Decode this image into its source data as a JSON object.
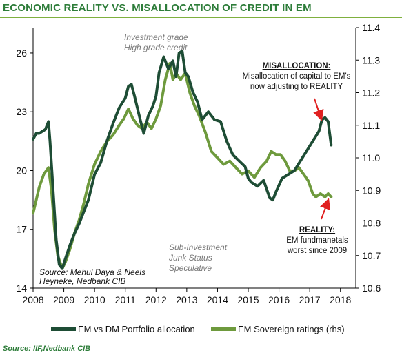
{
  "header": {
    "title": "ECONOMIC REALITY VS. MISALLOCATION OF CREDIT IN EM"
  },
  "footer": {
    "source": "Source: IIF,Nedbank CIB"
  },
  "chart_data": {
    "type": "line",
    "x_ticks": [
      "2008",
      "2009",
      "2010",
      "2011",
      "2012",
      "2013",
      "2014",
      "2015",
      "2016",
      "2017",
      "2018"
    ],
    "xlim": [
      2008,
      2018.5
    ],
    "y_left": {
      "ticks": [
        "14",
        "17",
        "20",
        "23",
        "26"
      ],
      "lim": [
        14,
        27.3
      ]
    },
    "y_right": {
      "ticks": [
        "10.6",
        "10.7",
        "10.8",
        "10.9",
        "11.0",
        "11.1",
        "11.2",
        "11.3",
        "11.4"
      ],
      "lim": [
        10.6,
        11.4
      ]
    },
    "legend_position": "bottom",
    "series": [
      {
        "name": "EM vs DM Portfolio allocation",
        "axis": "left",
        "color": "#1e4d35",
        "x": [
          2008.0,
          2008.1,
          2008.2,
          2008.3,
          2008.4,
          2008.5,
          2008.55,
          2008.65,
          2008.75,
          2008.85,
          2008.95,
          2009.05,
          2009.2,
          2009.35,
          2009.5,
          2009.65,
          2009.8,
          2010.0,
          2010.2,
          2010.4,
          2010.6,
          2010.8,
          2011.0,
          2011.1,
          2011.2,
          2011.3,
          2011.5,
          2011.6,
          2011.75,
          2011.9,
          2012.0,
          2012.1,
          2012.25,
          2012.4,
          2012.55,
          2012.65,
          2012.75,
          2012.85,
          2012.95,
          2013.05,
          2013.2,
          2013.35,
          2013.5,
          2013.7,
          2013.9,
          2014.1,
          2014.3,
          2014.5,
          2014.7,
          2014.9,
          2015.0,
          2015.1,
          2015.3,
          2015.5,
          2015.7,
          2015.8,
          2015.9,
          2016.1,
          2016.3,
          2016.5,
          2016.7,
          2016.9,
          2017.1,
          2017.3,
          2017.4,
          2017.5,
          2017.6,
          2017.7
        ],
        "values": [
          21.6,
          21.9,
          21.9,
          22.0,
          22.1,
          22.5,
          21.5,
          19.0,
          16.5,
          15.2,
          15.0,
          15.5,
          16.2,
          16.8,
          17.3,
          17.9,
          18.5,
          19.8,
          20.4,
          21.5,
          22.4,
          23.2,
          23.7,
          24.3,
          24.4,
          23.8,
          22.5,
          21.9,
          22.8,
          23.3,
          23.8,
          25.0,
          25.8,
          25.2,
          25.6,
          24.8,
          26.0,
          26.1,
          25.0,
          24.8,
          24.0,
          23.5,
          22.6,
          23.0,
          22.6,
          22.5,
          21.5,
          20.8,
          20.5,
          20.2,
          19.6,
          19.4,
          19.2,
          19.5,
          18.6,
          18.5,
          18.9,
          19.6,
          19.8,
          20.0,
          20.5,
          21.0,
          21.5,
          22.0,
          22.6,
          22.7,
          22.5,
          21.3
        ]
      },
      {
        "name": "EM Sovereign ratings (rhs)",
        "axis": "right",
        "color": "#6e9a3d",
        "x": [
          2008.0,
          2008.1,
          2008.2,
          2008.35,
          2008.5,
          2008.6,
          2008.7,
          2008.8,
          2008.95,
          2009.05,
          2009.2,
          2009.35,
          2009.5,
          2009.65,
          2009.8,
          2010.0,
          2010.2,
          2010.4,
          2010.6,
          2010.8,
          2010.95,
          2011.1,
          2011.25,
          2011.4,
          2011.55,
          2011.7,
          2011.85,
          2012.0,
          2012.15,
          2012.3,
          2012.45,
          2012.55,
          2012.65,
          2012.8,
          2012.95,
          2013.1,
          2013.25,
          2013.4,
          2013.6,
          2013.8,
          2014.0,
          2014.2,
          2014.4,
          2014.6,
          2014.8,
          2015.0,
          2015.2,
          2015.4,
          2015.6,
          2015.75,
          2015.9,
          2016.05,
          2016.2,
          2016.35,
          2016.5,
          2016.65,
          2016.8,
          2016.95,
          2017.1,
          2017.2,
          2017.35,
          2017.5,
          2017.6,
          2017.7
        ],
        "values": [
          10.83,
          10.87,
          10.91,
          10.95,
          10.97,
          10.9,
          10.78,
          10.7,
          10.66,
          10.68,
          10.72,
          10.77,
          10.81,
          10.86,
          10.92,
          10.98,
          11.02,
          11.05,
          11.07,
          11.1,
          11.12,
          11.15,
          11.12,
          11.1,
          11.09,
          11.11,
          11.09,
          11.12,
          11.16,
          11.24,
          11.29,
          11.24,
          11.26,
          11.24,
          11.26,
          11.2,
          11.16,
          11.13,
          11.08,
          11.02,
          11.0,
          10.98,
          10.99,
          10.97,
          10.95,
          10.96,
          10.94,
          10.97,
          10.99,
          11.02,
          11.01,
          11.01,
          10.99,
          10.96,
          10.96,
          10.97,
          10.95,
          10.93,
          10.89,
          10.88,
          10.89,
          10.88,
          10.89,
          10.88
        ]
      }
    ],
    "annotations": {
      "top_grey": [
        "Investment grade",
        "High grade credit"
      ],
      "bottom_grey": [
        "Sub-Investment",
        "Junk Status",
        "Speculative"
      ],
      "misallocation_title": "MISALLOCATION:",
      "misallocation_text": [
        "Misallocation of capital to EM's",
        "now adjusting to REALITY"
      ],
      "reality_title": "REALITY:",
      "reality_text": [
        "EM fundmanetals",
        "worst since 2009"
      ],
      "source_inside": [
        "Source: Mehul Daya & Neels",
        "Heyneke, Nedbank CIB"
      ]
    }
  }
}
